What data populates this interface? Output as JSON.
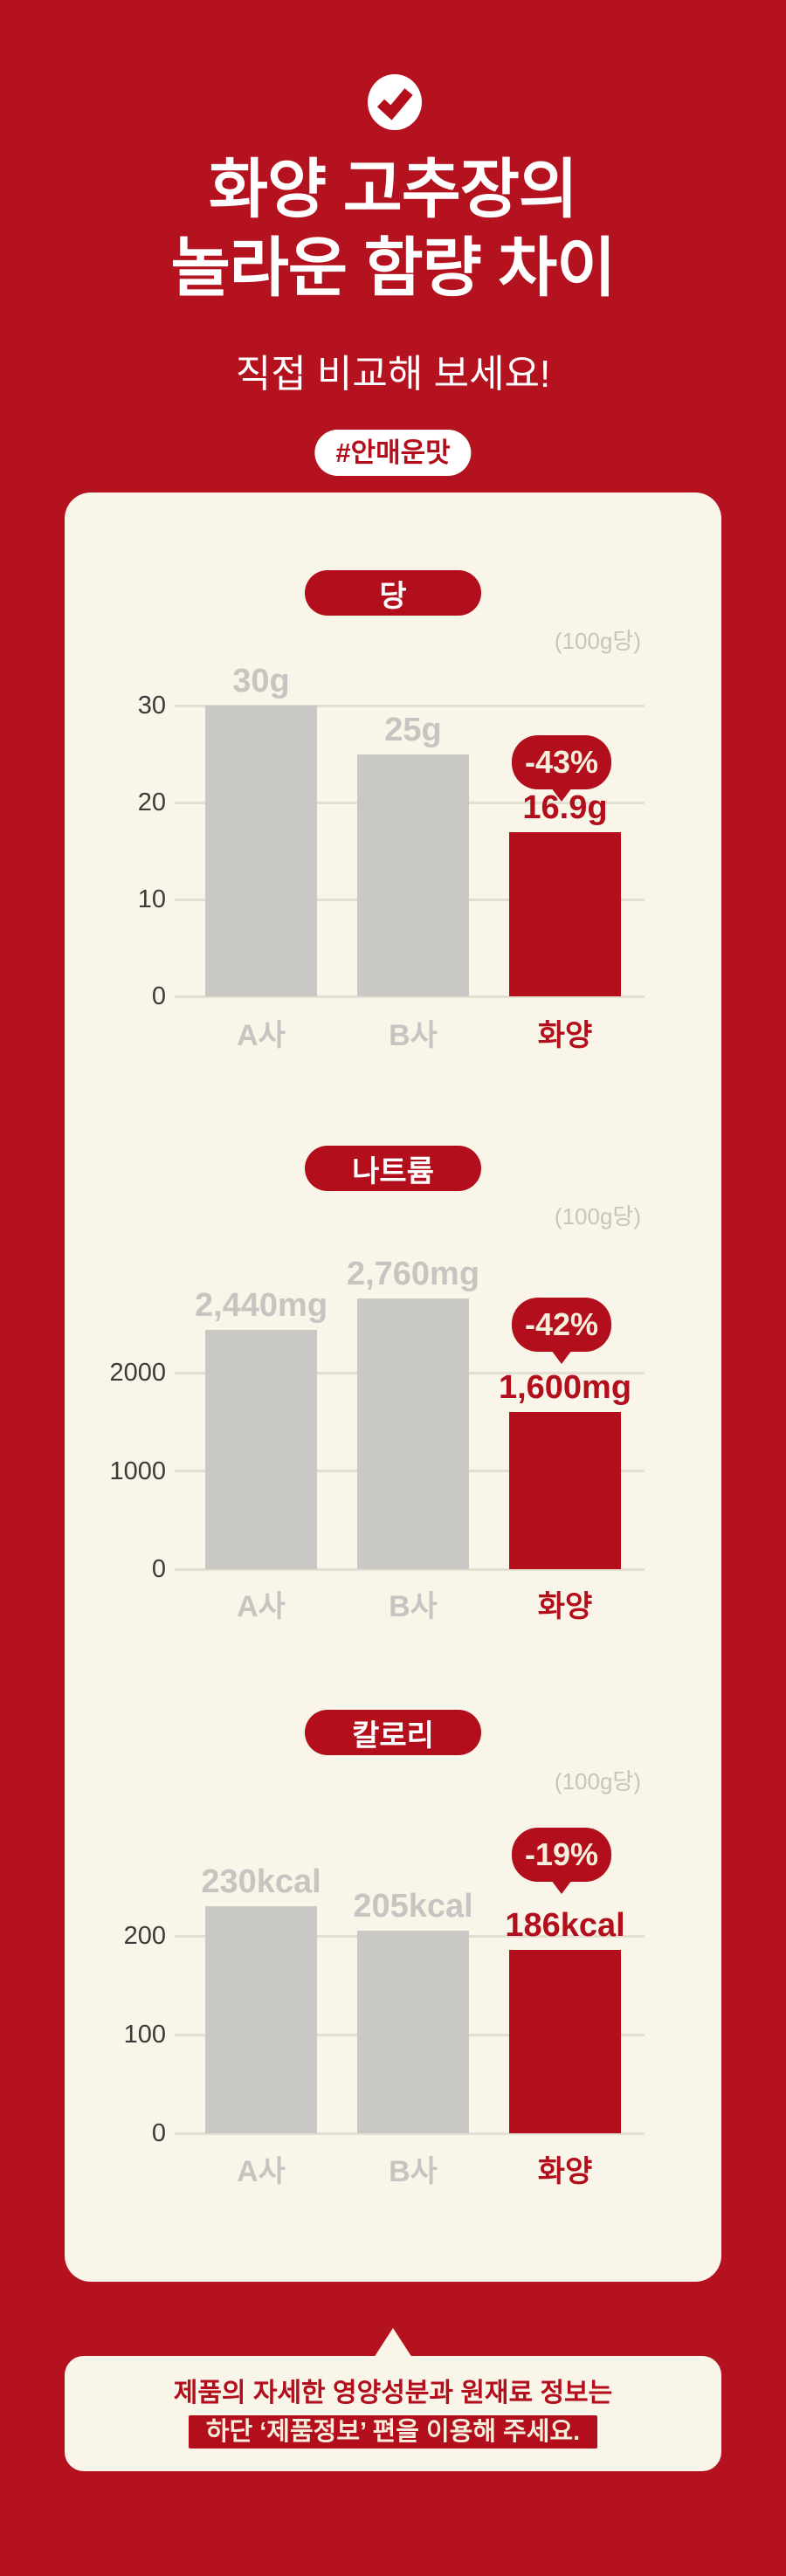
{
  "header": {
    "check_icon": "check-icon",
    "title_line1": "화양 고추장의",
    "title_line2": "놀라운 함량 차이",
    "subtitle": "직접 비교해 보세요!",
    "badge": "#안매운맛"
  },
  "chart_data": [
    {
      "type": "bar",
      "title": "당",
      "unit_note": "(100g당)",
      "categories": [
        "A사",
        "B사",
        "화양"
      ],
      "values": [
        30,
        25,
        16.9
      ],
      "value_labels": [
        "30g",
        "25g",
        "16.9g"
      ],
      "highlight_index": 2,
      "highlight_badge": "-43%",
      "yticks": [
        0,
        10,
        20,
        30
      ],
      "ylim": [
        0,
        33
      ],
      "grid": true,
      "legend": "none"
    },
    {
      "type": "bar",
      "title": "나트륨",
      "unit_note": "(100g당)",
      "categories": [
        "A사",
        "B사",
        "화양"
      ],
      "values": [
        2440,
        2760,
        1600
      ],
      "value_labels": [
        "2,440mg",
        "2,760mg",
        "1,600mg"
      ],
      "highlight_index": 2,
      "highlight_badge": "-42%",
      "yticks": [
        0,
        1000,
        2000
      ],
      "ylim": [
        0,
        3000
      ],
      "grid": true,
      "legend": "none"
    },
    {
      "type": "bar",
      "title": "칼로리",
      "unit_note": "(100g당)",
      "categories": [
        "A사",
        "B사",
        "화양"
      ],
      "values": [
        230,
        205,
        186
      ],
      "value_labels": [
        "230kcal",
        "205kcal",
        "186kcal"
      ],
      "highlight_index": 2,
      "highlight_badge": "-19%",
      "yticks": [
        0,
        100,
        200
      ],
      "ylim": [
        0,
        260
      ],
      "grid": true,
      "legend": "none"
    }
  ],
  "footer": {
    "line1": "제품의 자세한 영양성분과 원재료 정보는",
    "line2": "하단 ‘제품정보’ 편을 이용해 주세요."
  },
  "colors": {
    "background": "#b5121f",
    "accent": "#b20e1c",
    "card_background": "#f9f5e8",
    "bar_gray": "#c9c8c5",
    "label_gray": "#c6c5c2",
    "axis_text": "#3c3b39",
    "gridline": "#e3dfd2",
    "caption_gray": "#c8c4b8",
    "bubble_text": "#f5eedd",
    "title_white": "#ffffff"
  }
}
